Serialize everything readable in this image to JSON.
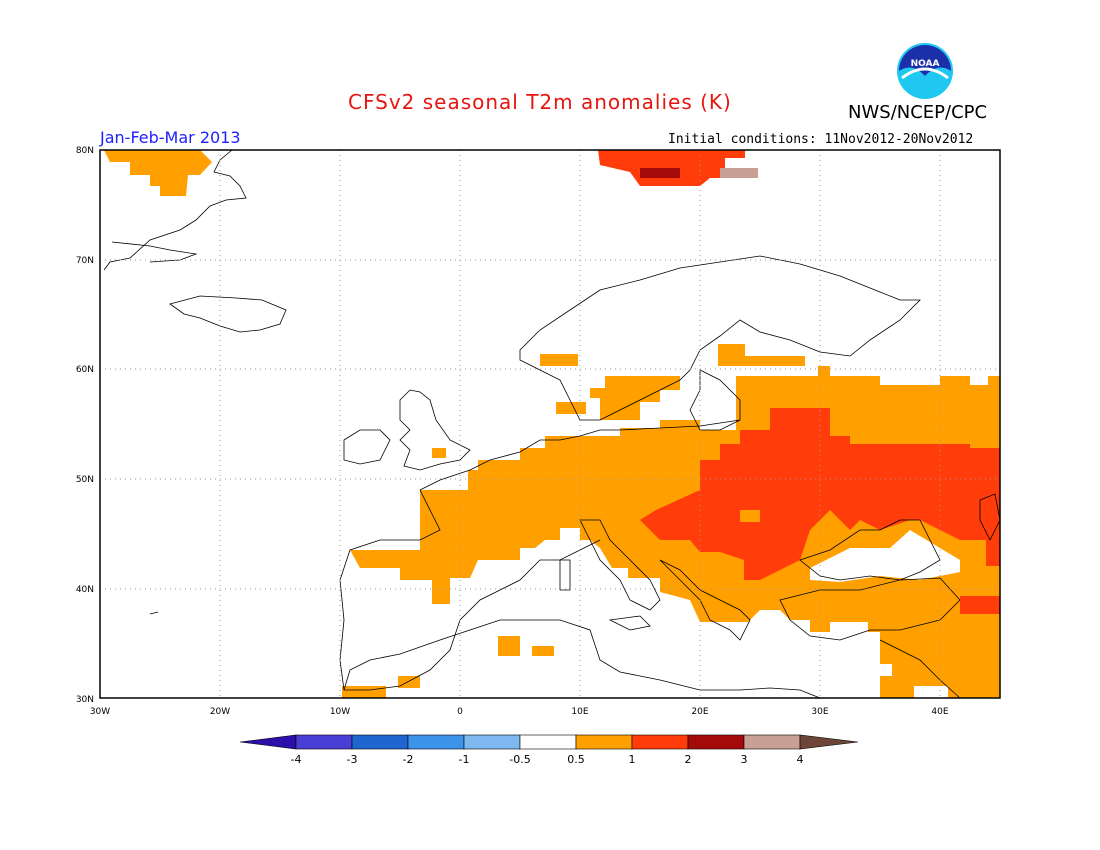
{
  "header": {
    "title": "CFSv2 seasonal T2m anomalies (K)",
    "brand": "NWS/NCEP/CPC",
    "logo_text": "NOAA",
    "period": "Jan-Feb-Mar 2013",
    "initial_conditions": "Initial conditions: 11Nov2012-20Nov2012"
  },
  "axes": {
    "lat_ticks": [
      "30N",
      "40N",
      "50N",
      "60N",
      "70N",
      "80N"
    ],
    "lon_ticks": [
      "30W",
      "20W",
      "10W",
      "0",
      "10E",
      "20E",
      "30E",
      "40E"
    ]
  },
  "legend": {
    "labels": [
      "-4",
      "-3",
      "-2",
      "-1",
      "-0.5",
      "0.5",
      "1",
      "2",
      "3",
      "4"
    ],
    "colors": [
      "#2b0fa8",
      "#4a3fd4",
      "#1f66d1",
      "#3c93ea",
      "#7db8f0",
      "#ffffff",
      "#ffa000",
      "#ff3c0a",
      "#a50a0a",
      "#c8a096",
      "#6e4638"
    ]
  },
  "colors": {
    "anomaly_05_1": "#ffa000",
    "anomaly_1_2": "#ff3c0a",
    "anomaly_2_3": "#a50a0a",
    "anomaly_3_4": "#c8a096",
    "coast": "#000000",
    "grid": "#888888"
  }
}
